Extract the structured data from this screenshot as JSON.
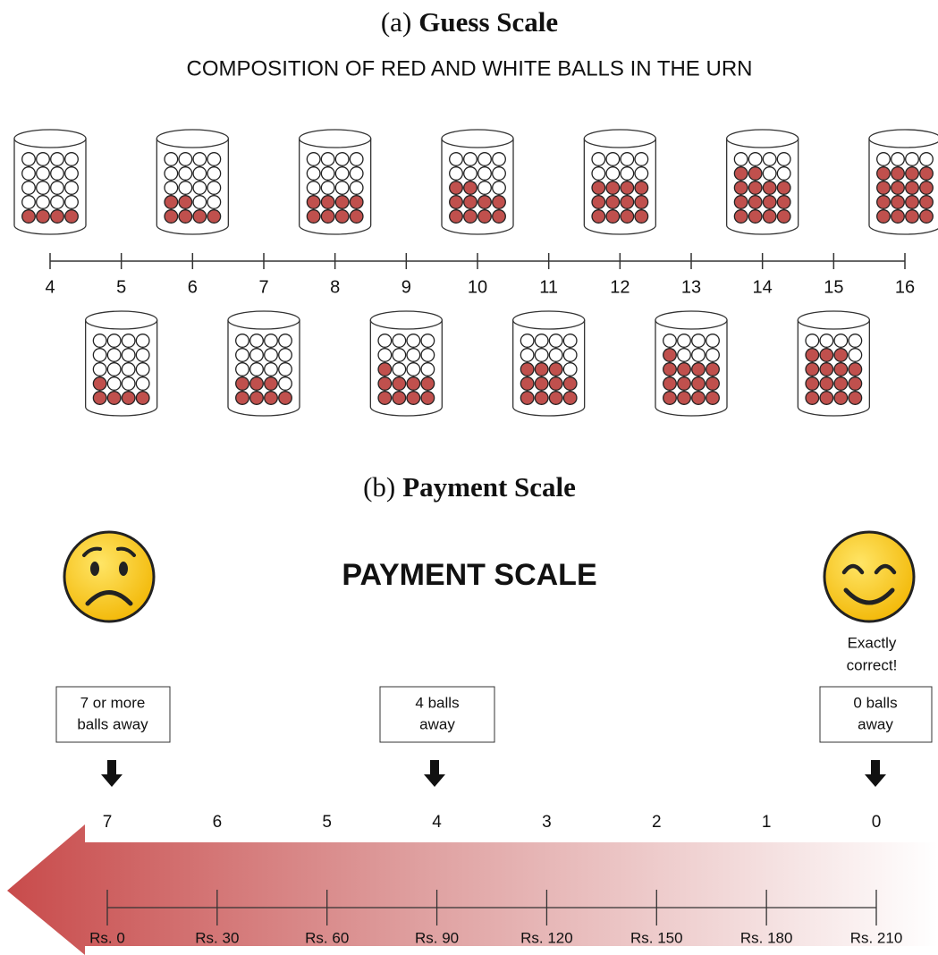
{
  "section_a": {
    "caption_label": "(a)",
    "caption": "Guess Scale",
    "heading": "COMPOSITION OF RED AND WHITE BALLS IN THE URN",
    "ticks": [
      4,
      5,
      6,
      7,
      8,
      9,
      10,
      11,
      12,
      13,
      14,
      15,
      16
    ]
  },
  "section_b": {
    "caption_label": "(b)",
    "caption": "Payment Scale",
    "title": "PAYMENT SCALE",
    "note": [
      "Exactly",
      "correct!"
    ],
    "boxes": [
      [
        "7 or more",
        "balls away"
      ],
      [
        "4 balls",
        "away"
      ],
      [
        "0 balls",
        "away"
      ]
    ],
    "distances": [
      7,
      6,
      5,
      4,
      3,
      2,
      1,
      0
    ],
    "payments": [
      "Rs. 0",
      "Rs. 30",
      "Rs. 60",
      "Rs. 90",
      "Rs. 120",
      "Rs. 150",
      "Rs. 180",
      "Rs. 210"
    ]
  }
}
